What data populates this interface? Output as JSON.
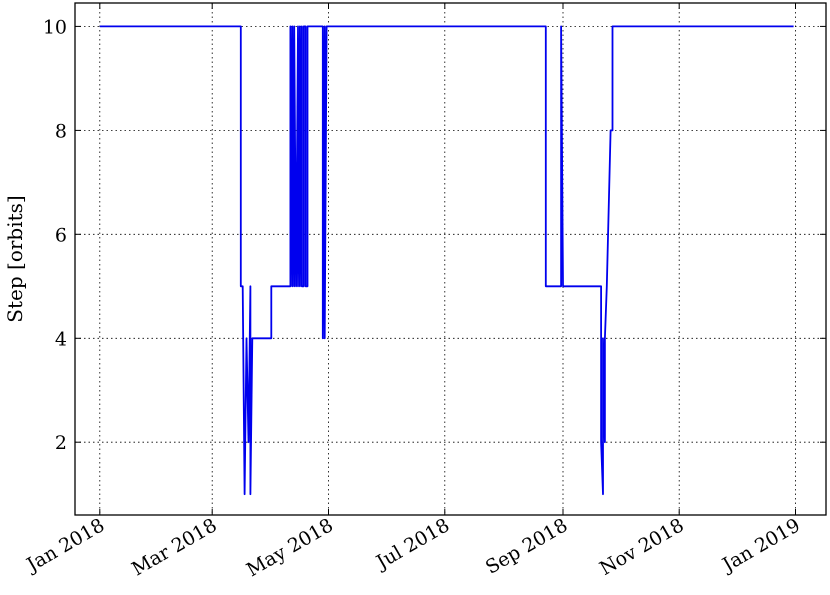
{
  "chart_data": {
    "type": "line",
    "title": "",
    "xlabel": "",
    "ylabel": "Step [orbits]",
    "xlim": [
      "2017-12-19",
      "2019-01-17"
    ],
    "ylim": [
      0.6,
      10.45
    ],
    "grid": true,
    "line_color": "#0000ee",
    "x_ticks": [
      {
        "date": "2018-01-01",
        "label": "Jan 2018"
      },
      {
        "date": "2018-03-01",
        "label": "Mar 2018"
      },
      {
        "date": "2018-05-01",
        "label": "May 2018"
      },
      {
        "date": "2018-07-01",
        "label": "Jul 2018"
      },
      {
        "date": "2018-09-01",
        "label": "Sep 2018"
      },
      {
        "date": "2018-11-01",
        "label": "Nov 2018"
      },
      {
        "date": "2019-01-01",
        "label": "Jan 2019"
      }
    ],
    "y_ticks": [
      {
        "value": 2,
        "label": "2"
      },
      {
        "value": 4,
        "label": "4"
      },
      {
        "value": 6,
        "label": "6"
      },
      {
        "value": 8,
        "label": "8"
      },
      {
        "value": 10,
        "label": "10"
      }
    ],
    "series": [
      {
        "x": [
          "2018-01-01",
          "2018-03-16",
          "2018-03-16",
          "2018-03-17",
          "2018-03-18",
          "2018-03-19",
          "2018-03-20",
          "2018-03-21",
          "2018-03-21",
          "2018-03-22",
          "2018-03-23",
          "2018-03-24",
          "2018-04-01",
          "2018-04-01",
          "2018-04-11",
          "2018-04-11",
          "2018-04-12",
          "2018-04-12",
          "2018-04-13",
          "2018-04-13",
          "2018-04-14",
          "2018-04-14",
          "2018-04-15",
          "2018-04-15",
          "2018-04-16",
          "2018-04-16",
          "2018-04-17",
          "2018-04-17",
          "2018-04-18",
          "2018-04-18",
          "2018-04-19",
          "2018-04-19",
          "2018-04-20",
          "2018-04-20",
          "2018-04-21",
          "2018-04-21",
          "2018-04-22",
          "2018-04-22",
          "2018-04-28",
          "2018-04-28",
          "2018-04-29",
          "2018-04-29",
          "2018-04-30",
          "2018-04-30",
          "2018-08-23",
          "2018-08-23",
          "2018-08-31",
          "2018-08-31",
          "2018-09-01",
          "2018-09-01",
          "2018-09-21",
          "2018-09-21",
          "2018-09-22",
          "2018-09-22",
          "2018-09-23",
          "2018-09-23",
          "2018-09-24",
          "2018-09-26",
          "2018-09-27",
          "2018-09-27",
          "2018-12-31"
        ],
        "y": [
          10,
          10,
          5,
          5,
          1,
          4,
          2,
          5,
          1,
          4,
          4,
          4,
          4,
          5,
          5,
          10,
          5,
          10,
          5,
          10,
          5,
          5,
          10,
          5,
          10,
          5,
          10,
          5,
          5,
          10,
          10,
          5,
          5,
          10,
          10,
          10,
          10,
          10,
          10,
          4,
          10,
          4,
          10,
          10,
          10,
          5,
          5,
          10,
          5,
          5,
          5,
          2,
          1,
          4,
          2,
          4,
          5,
          8,
          8,
          10,
          10
        ]
      }
    ]
  }
}
